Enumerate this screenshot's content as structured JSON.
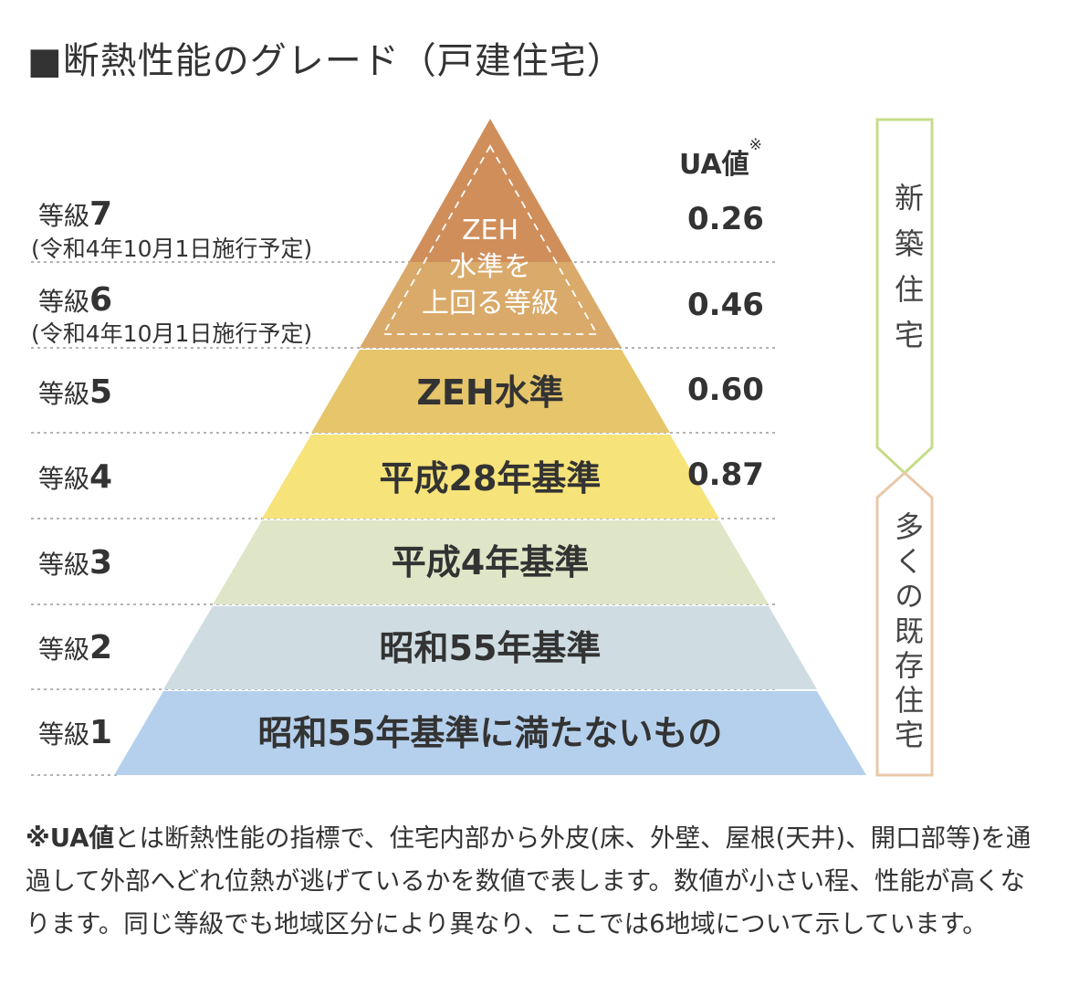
{
  "title": "■断熱性能のグレード（戸建住宅）",
  "ua_header": {
    "label": "UA値",
    "mark": "※"
  },
  "grades": [
    {
      "prefix": "等級",
      "num": "7",
      "note": "(令和4年10月1日施行予定)",
      "ua": "0.26"
    },
    {
      "prefix": "等級",
      "num": "6",
      "note": "(令和4年10月1日施行予定)",
      "ua": "0.46"
    },
    {
      "prefix": "等級",
      "num": "5",
      "ua": "0.60"
    },
    {
      "prefix": "等級",
      "num": "4",
      "ua": "0.87"
    },
    {
      "prefix": "等級",
      "num": "3"
    },
    {
      "prefix": "等級",
      "num": "2"
    },
    {
      "prefix": "等級",
      "num": "1"
    }
  ],
  "pyramid": {
    "top_label": [
      "ZEH",
      "水準を",
      "上回る等級"
    ],
    "bands": [
      {
        "label": "ZEH水準",
        "color": "#e6c56b"
      },
      {
        "label": "平成28年基準",
        "color": "#f6e37a"
      },
      {
        "label": "平成4年基準",
        "color": "#dfe6c8"
      },
      {
        "label": "昭和55年基準",
        "color": "#cfdde3"
      },
      {
        "label": "昭和55年基準に満たないもの",
        "color": "#b5d0ec"
      }
    ],
    "top_colors": [
      "#d08e5a",
      "#d9aa6a"
    ]
  },
  "side": {
    "new": {
      "text": "新築住宅",
      "color": "#c5dc8a"
    },
    "existing": {
      "text": "多くの既存住宅",
      "color": "#e8c8a8"
    }
  },
  "footnote": {
    "mark": "※UA値",
    "text": "とは断熱性能の指標で、住宅内部から外皮(床、外壁、屋根(天井)、開口部等)を通過して外部へどれ位熱が逃げているかを数値で表します。数値が小さい程、性能が高くなります。同じ等級でも地域区分により異なり、ここでは6地域について示しています。"
  }
}
